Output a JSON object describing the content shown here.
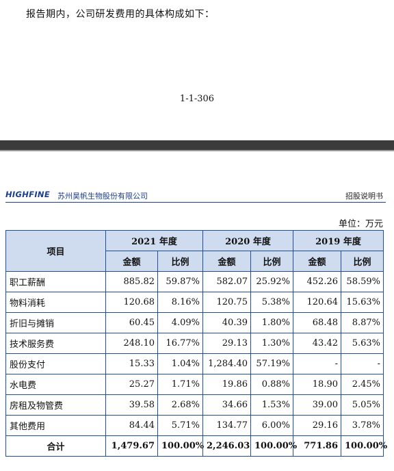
{
  "intro_text": "报告期内，公司研发费用的具体构成如下：",
  "page_number": "1-1-306",
  "header": {
    "logo": "HIGHFINE",
    "company": "苏州昊帆生物股份有限公司",
    "doc_type": "招股说明书"
  },
  "unit": "单位：万元",
  "table": {
    "item_header": "项目",
    "years": [
      "2021 年度",
      "2020 年度",
      "2019 年度"
    ],
    "sub_amount": "金额",
    "sub_ratio": "比例",
    "rows": [
      {
        "name": "职工薪酬",
        "cells": [
          "885.82",
          "59.87%",
          "582.07",
          "25.92%",
          "452.26",
          "58.59%"
        ]
      },
      {
        "name": "物料消耗",
        "cells": [
          "120.68",
          "8.16%",
          "120.75",
          "5.38%",
          "120.64",
          "15.63%"
        ]
      },
      {
        "name": "折旧与摊销",
        "cells": [
          "60.45",
          "4.09%",
          "40.39",
          "1.80%",
          "68.48",
          "8.87%"
        ]
      },
      {
        "name": "技术服务费",
        "cells": [
          "248.10",
          "16.77%",
          "29.13",
          "1.30%",
          "43.42",
          "5.63%"
        ]
      },
      {
        "name": "股份支付",
        "cells": [
          "15.33",
          "1.04%",
          "1,284.40",
          "57.19%",
          "-",
          "-"
        ]
      },
      {
        "name": "水电费",
        "cells": [
          "25.27",
          "1.71%",
          "19.86",
          "0.88%",
          "18.90",
          "2.45%"
        ]
      },
      {
        "name": "房租及物管费",
        "cells": [
          "39.58",
          "2.68%",
          "34.66",
          "1.53%",
          "39.00",
          "5.05%"
        ]
      },
      {
        "name": "其他费用",
        "cells": [
          "84.44",
          "5.71%",
          "134.77",
          "6.00%",
          "29.16",
          "3.78%"
        ]
      }
    ],
    "total": {
      "name": "合计",
      "cells": [
        "1,479.67",
        "100.00%",
        "2,246.03",
        "100.00%",
        "771.86",
        "100.00%"
      ]
    }
  }
}
